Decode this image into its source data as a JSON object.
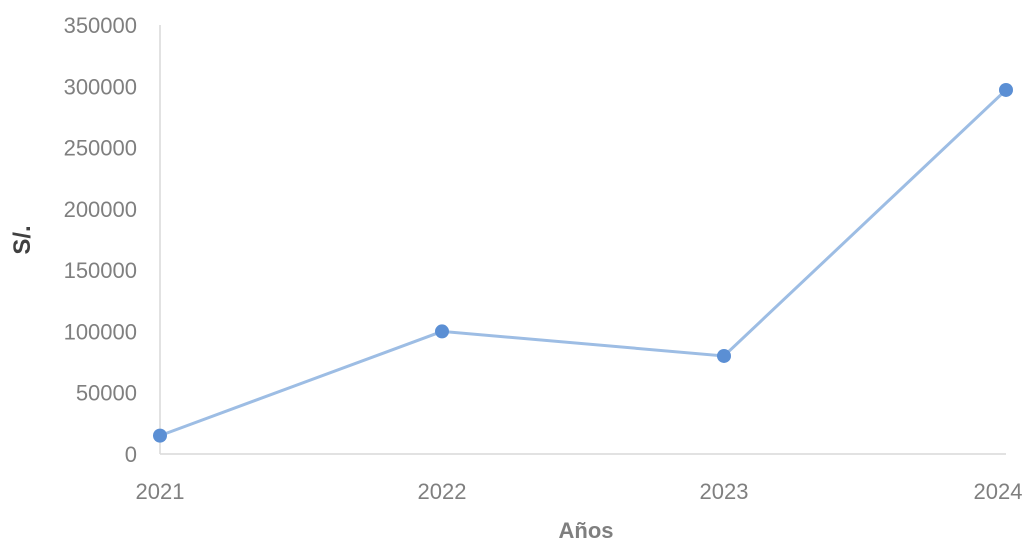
{
  "chart_data": {
    "type": "line",
    "title": "",
    "xlabel": "Años",
    "ylabel": "S/.",
    "categories": [
      "2021",
      "2022",
      "2023",
      "2024"
    ],
    "series": [
      {
        "values": [
          15000,
          100000,
          80000,
          297000
        ]
      }
    ],
    "ylim": [
      0,
      350000
    ],
    "yticks": [
      "0",
      "50000",
      "100000",
      "150000",
      "200000",
      "250000",
      "300000",
      "350000"
    ],
    "grid": false,
    "legend": "none",
    "colors": {
      "line": "#9dbde4",
      "marker": "#5b8fd4",
      "axis": "#d9d9d9",
      "text": "#7f7f7f"
    }
  }
}
